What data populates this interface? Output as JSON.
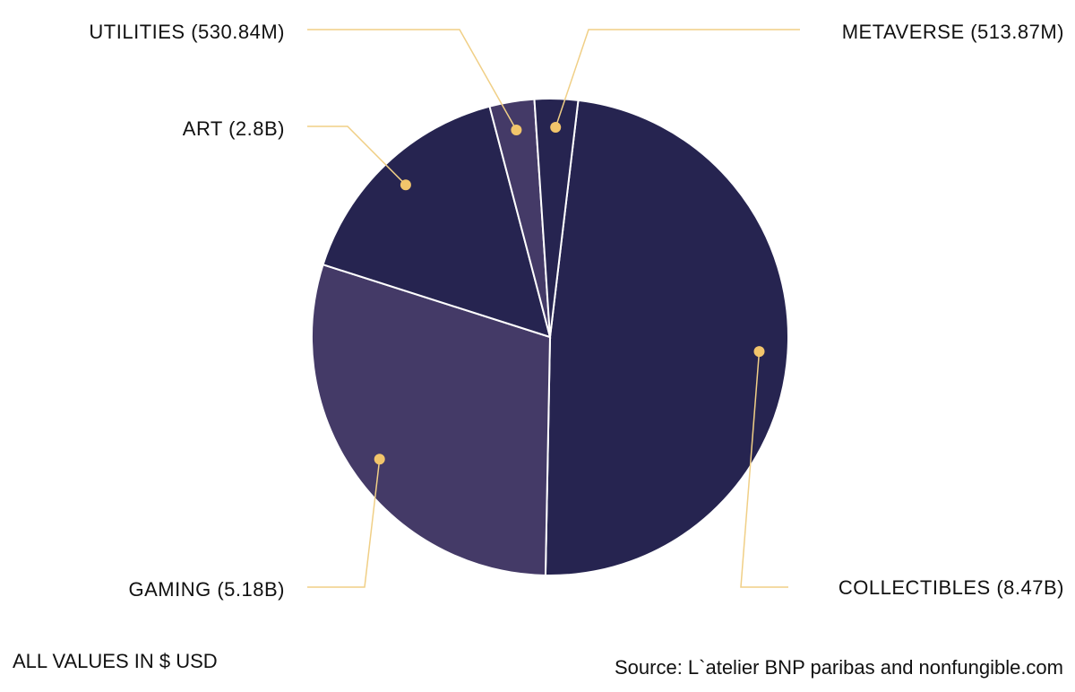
{
  "chart_data": {
    "type": "pie",
    "slices": [
      {
        "label": "COLLECTIBLES (8.47B)",
        "value": 8.47,
        "color": "#262450"
      },
      {
        "label": "GAMING (5.18B)",
        "value": 5.18,
        "color": "#443a67"
      },
      {
        "label": "ART (2.8B)",
        "value": 2.8,
        "color": "#262450"
      },
      {
        "label": "UTILITIES (530.84M)",
        "value": 0.53084,
        "color": "#443a67"
      },
      {
        "label": "METAVERSE (513.87M)",
        "value": 0.51387,
        "color": "#262450"
      }
    ],
    "note": "ALL VALUES IN $ USD",
    "source": "Source: L`atelier BNP paribas and nonfungible.com",
    "colors": {
      "dark_slice": "#262450",
      "light_slice": "#443a67",
      "leader_line": "#f0cf86",
      "marker_dot": "#f2c56b",
      "slice_border": "#ffffff"
    }
  }
}
